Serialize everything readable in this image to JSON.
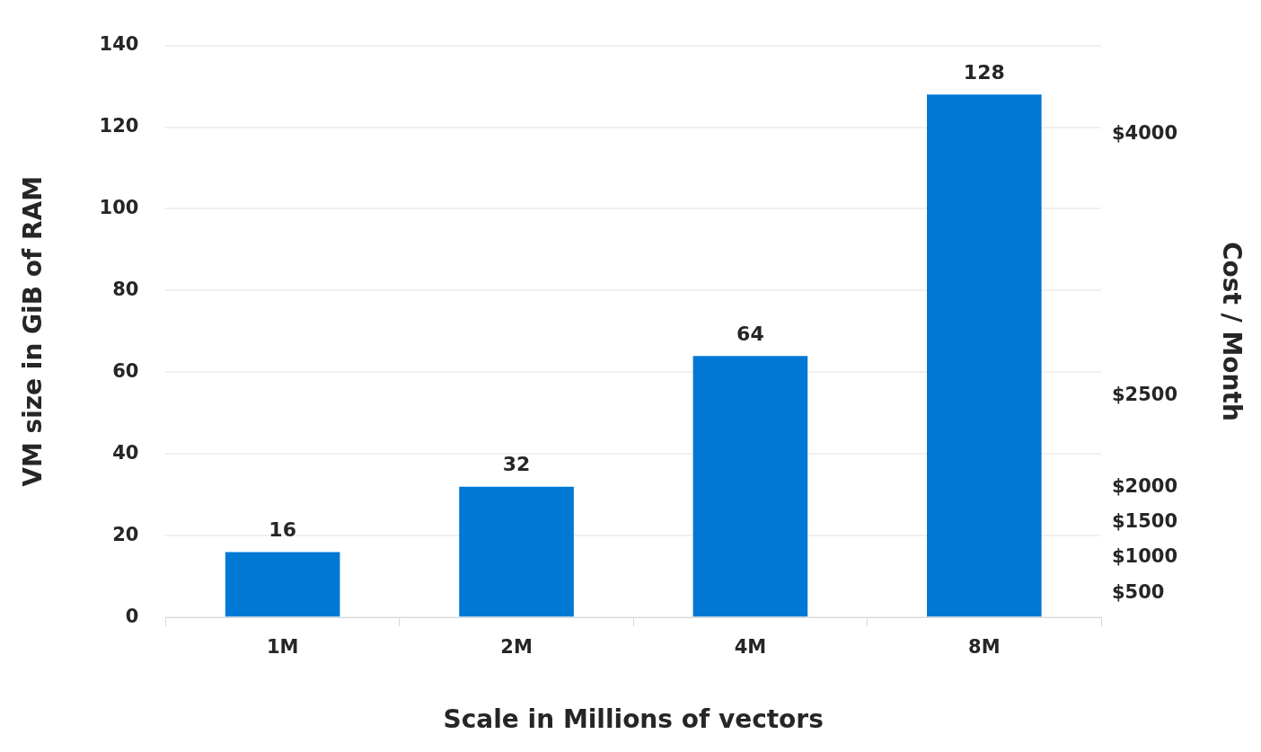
{
  "chart_data": {
    "type": "bar",
    "xlabel": "Scale in Millions of vectors",
    "ylabel": "VM size in GiB of RAM",
    "y2label": "Cost / Month",
    "categories": [
      "1M",
      "2M",
      "4M",
      "8M"
    ],
    "values": [
      16,
      32,
      64,
      128
    ],
    "color": "#0078d4",
    "ylim": [
      0,
      140
    ],
    "yticks": [
      0,
      20,
      40,
      60,
      80,
      100,
      120,
      140
    ],
    "annotations": [
      "$500",
      "$1000",
      "$1500",
      "$2000",
      "$2500",
      "$4000"
    ],
    "grid": "y",
    "data_labels": true
  }
}
